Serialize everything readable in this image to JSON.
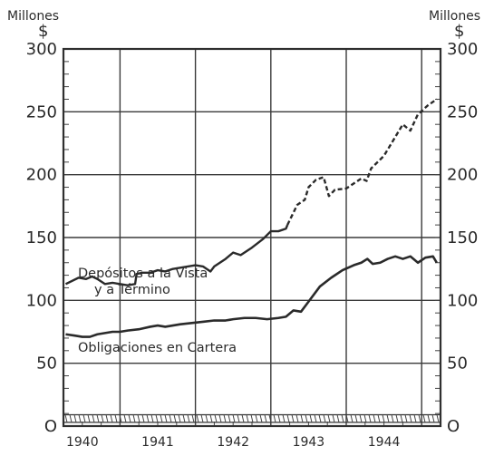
{
  "chart_data": {
    "type": "line",
    "title": "",
    "left_unit_label": "Millones",
    "left_currency_label": "$",
    "right_unit_label": "Millones",
    "right_currency_label": "$",
    "ylim": [
      0,
      300
    ],
    "y_ticks": [
      0,
      50,
      100,
      150,
      200,
      250,
      300
    ],
    "y_tick_labels": [
      "O",
      "50",
      "100",
      "150",
      "200",
      "250",
      "300"
    ],
    "xlim": [
      1939.75,
      1944.75
    ],
    "x_ticks": [
      1940,
      1941,
      1942,
      1943,
      1944
    ],
    "x_tick_labels": [
      "1940",
      "1941",
      "1942",
      "1943",
      "1944"
    ],
    "grid": true,
    "series": [
      {
        "name": "Depósitos a la Vista y a Término",
        "style": "solid-then-dashed",
        "color": "#2a2a2a",
        "points": [
          [
            1939.78,
            113
          ],
          [
            1939.95,
            118
          ],
          [
            1940.05,
            117
          ],
          [
            1940.13,
            119
          ],
          [
            1940.2,
            117
          ],
          [
            1940.3,
            113
          ],
          [
            1940.4,
            114
          ],
          [
            1940.5,
            113
          ],
          [
            1940.6,
            112
          ],
          [
            1940.7,
            113
          ],
          [
            1940.72,
            121
          ],
          [
            1940.8,
            122
          ],
          [
            1940.9,
            122
          ],
          [
            1941.0,
            124
          ],
          [
            1941.1,
            123
          ],
          [
            1941.2,
            125
          ],
          [
            1941.3,
            126
          ],
          [
            1941.4,
            127
          ],
          [
            1941.5,
            128
          ],
          [
            1941.6,
            127
          ],
          [
            1941.7,
            123
          ],
          [
            1941.75,
            127
          ],
          [
            1941.9,
            133
          ],
          [
            1942.0,
            138
          ],
          [
            1942.1,
            136
          ],
          [
            1942.25,
            142
          ],
          [
            1942.4,
            149
          ],
          [
            1942.5,
            155
          ],
          [
            1942.6,
            155
          ],
          [
            1942.7,
            157
          ],
          [
            1942.72,
            160
          ],
          [
            1942.85,
            176
          ],
          [
            1942.95,
            180
          ],
          [
            1943.0,
            190
          ],
          [
            1943.1,
            196
          ],
          [
            1943.2,
            198
          ],
          [
            1943.27,
            183
          ],
          [
            1943.35,
            188
          ],
          [
            1943.5,
            189
          ],
          [
            1943.6,
            193
          ],
          [
            1943.7,
            197
          ],
          [
            1943.77,
            195
          ],
          [
            1943.83,
            205
          ],
          [
            1943.95,
            212
          ],
          [
            1944.0,
            215
          ],
          [
            1944.1,
            225
          ],
          [
            1944.25,
            240
          ],
          [
            1944.35,
            235
          ],
          [
            1944.45,
            248
          ],
          [
            1944.58,
            255
          ],
          [
            1944.7,
            260
          ]
        ]
      },
      {
        "name": "Obligaciones en Cartera",
        "style": "solid",
        "color": "#2a2a2a",
        "points": [
          [
            1939.78,
            73
          ],
          [
            1939.9,
            72
          ],
          [
            1940.0,
            71
          ],
          [
            1940.1,
            71
          ],
          [
            1940.2,
            73
          ],
          [
            1940.3,
            74
          ],
          [
            1940.4,
            75
          ],
          [
            1940.5,
            75
          ],
          [
            1940.6,
            76
          ],
          [
            1940.75,
            77
          ],
          [
            1940.9,
            79
          ],
          [
            1941.0,
            80
          ],
          [
            1941.1,
            79
          ],
          [
            1941.2,
            80
          ],
          [
            1941.3,
            81
          ],
          [
            1941.45,
            82
          ],
          [
            1941.6,
            83
          ],
          [
            1941.75,
            84
          ],
          [
            1941.9,
            84
          ],
          [
            1942.0,
            85
          ],
          [
            1942.15,
            86
          ],
          [
            1942.3,
            86
          ],
          [
            1942.45,
            85
          ],
          [
            1942.6,
            86
          ],
          [
            1942.7,
            87
          ],
          [
            1942.8,
            92
          ],
          [
            1942.9,
            91
          ],
          [
            1943.0,
            99
          ],
          [
            1943.15,
            111
          ],
          [
            1943.3,
            118
          ],
          [
            1943.45,
            124
          ],
          [
            1943.6,
            128
          ],
          [
            1943.7,
            130
          ],
          [
            1943.78,
            133
          ],
          [
            1943.85,
            129
          ],
          [
            1943.95,
            130
          ],
          [
            1944.05,
            133
          ],
          [
            1944.15,
            135
          ],
          [
            1944.25,
            133
          ],
          [
            1944.35,
            135
          ],
          [
            1944.45,
            130
          ],
          [
            1944.55,
            134
          ],
          [
            1944.65,
            135
          ],
          [
            1944.7,
            130
          ]
        ]
      }
    ],
    "annotations": [
      {
        "text": "Depósitos a la Vista",
        "target": "series.0"
      },
      {
        "text": "y a Término",
        "target": "series.0"
      },
      {
        "text": "Obligaciones en Cartera",
        "target": "series.1"
      }
    ]
  }
}
